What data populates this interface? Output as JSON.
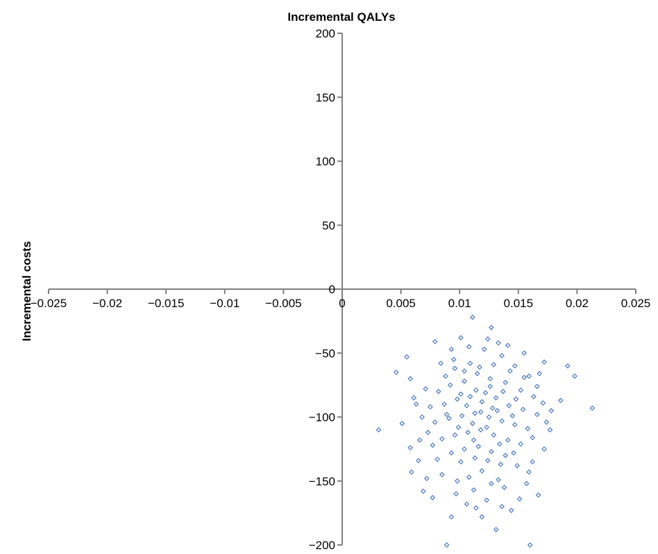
{
  "chart_data": {
    "type": "scatter",
    "title": "",
    "xlabel": "Incremental QALYs",
    "ylabel": "Incremental costs",
    "xlim": [
      -0.025,
      0.025
    ],
    "ylim": [
      -200,
      200
    ],
    "x_ticks": [
      -0.025,
      -0.02,
      -0.015,
      -0.01,
      -0.005,
      0,
      0.005,
      0.01,
      0.015,
      0.02,
      0.025
    ],
    "x_tick_labels": [
      "−0.025",
      "−0.02",
      "−0.015",
      "−0.01",
      "−0.005",
      "0",
      "0.005",
      "0.01",
      "0.015",
      "0.02",
      "0.025"
    ],
    "y_ticks": [
      200,
      150,
      100,
      50,
      0,
      -50,
      -100,
      -150,
      -200
    ],
    "y_tick_labels": [
      "200",
      "150",
      "100",
      "50",
      "0",
      "−50",
      "−100",
      "−150",
      "−200"
    ],
    "grid": false,
    "legend": "none",
    "marker": "open-diamond",
    "marker_color": "#4a78bf",
    "axis_color": "#7f7f7f",
    "series": [
      {
        "points": [
          [
            0.0031,
            -110
          ],
          [
            0.0051,
            -105
          ],
          [
            0.0055,
            -53
          ],
          [
            0.0046,
            -65
          ],
          [
            0.0063,
            -90
          ],
          [
            0.0089,
            -200
          ],
          [
            0.0111,
            -22
          ],
          [
            0.0127,
            -30
          ],
          [
            0.016,
            -200
          ],
          [
            0.0213,
            -93
          ],
          [
            0.0198,
            -68
          ],
          [
            0.0192,
            -60
          ],
          [
            0.0186,
            -87
          ],
          [
            0.0178,
            -95
          ],
          [
            0.0172,
            -57
          ],
          [
            0.0131,
            -188
          ],
          [
            0.0144,
            -173
          ],
          [
            0.0119,
            -178
          ],
          [
            0.0093,
            -178
          ],
          [
            0.0077,
            -163
          ],
          [
            0.0069,
            -158
          ],
          [
            0.0072,
            -148
          ],
          [
            0.0167,
            -161
          ],
          [
            0.0159,
            -143
          ],
          [
            0.0151,
            -164
          ],
          [
            0.0172,
            -125
          ],
          [
            0.0177,
            -110
          ],
          [
            0.0066,
            -118
          ],
          [
            0.0058,
            -124
          ],
          [
            0.0079,
            -41
          ],
          [
            0.0101,
            -38
          ],
          [
            0.0124,
            -39
          ],
          [
            0.0141,
            -44
          ],
          [
            0.0155,
            -50
          ],
          [
            0.0168,
            -66
          ],
          [
            0.0106,
            -168
          ],
          [
            0.0112,
            -157
          ],
          [
            0.0085,
            -145
          ],
          [
            0.0098,
            -150
          ],
          [
            0.0138,
            -155
          ],
          [
            0.0149,
            -138
          ],
          [
            0.0133,
            -149
          ],
          [
            0.0095,
            -55
          ],
          [
            0.0109,
            -58
          ],
          [
            0.0121,
            -47
          ],
          [
            0.0136,
            -52
          ],
          [
            0.0147,
            -60
          ],
          [
            0.0159,
            -68
          ],
          [
            0.0088,
            -68
          ],
          [
            0.0082,
            -80
          ],
          [
            0.0092,
            -75
          ],
          [
            0.0104,
            -72
          ],
          [
            0.0115,
            -66
          ],
          [
            0.0126,
            -70
          ],
          [
            0.0139,
            -73
          ],
          [
            0.0152,
            -79
          ],
          [
            0.0163,
            -84
          ],
          [
            0.0075,
            -92
          ],
          [
            0.0087,
            -90
          ],
          [
            0.0098,
            -86
          ],
          [
            0.0109,
            -84
          ],
          [
            0.0119,
            -88
          ],
          [
            0.0131,
            -85
          ],
          [
            0.0142,
            -91
          ],
          [
            0.0154,
            -94
          ],
          [
            0.0166,
            -98
          ],
          [
            0.0079,
            -104
          ],
          [
            0.0091,
            -101
          ],
          [
            0.0102,
            -99
          ],
          [
            0.0113,
            -97
          ],
          [
            0.0125,
            -100
          ],
          [
            0.0136,
            -103
          ],
          [
            0.0147,
            -106
          ],
          [
            0.0158,
            -109
          ],
          [
            0.0085,
            -117
          ],
          [
            0.0096,
            -114
          ],
          [
            0.0107,
            -112
          ],
          [
            0.0118,
            -110
          ],
          [
            0.0129,
            -114
          ],
          [
            0.0141,
            -118
          ],
          [
            0.0152,
            -121
          ],
          [
            0.0093,
            -128
          ],
          [
            0.0104,
            -125
          ],
          [
            0.0116,
            -123
          ],
          [
            0.0127,
            -127
          ],
          [
            0.0139,
            -130
          ],
          [
            0.0101,
            -135
          ],
          [
            0.0113,
            -132
          ],
          [
            0.0124,
            -134
          ],
          [
            0.0135,
            -137
          ],
          [
            0.0117,
            -61
          ],
          [
            0.0129,
            -59
          ],
          [
            0.0096,
            -62
          ],
          [
            0.0143,
            -64
          ],
          [
            0.0084,
            -58
          ],
          [
            0.0071,
            -78
          ],
          [
            0.0068,
            -100
          ],
          [
            0.0073,
            -112
          ],
          [
            0.0166,
            -76
          ],
          [
            0.0171,
            -89
          ],
          [
            0.0174,
            -104
          ],
          [
            0.0162,
            -116
          ],
          [
            0.0108,
            -45
          ],
          [
            0.0133,
            -42
          ],
          [
            0.0093,
            -47
          ],
          [
            0.0119,
            -142
          ],
          [
            0.0108,
            -147
          ],
          [
            0.0127,
            -152
          ],
          [
            0.0146,
            -128
          ],
          [
            0.0081,
            -133
          ],
          [
            0.0077,
            -122
          ],
          [
            0.0114,
            -79
          ],
          [
            0.0122,
            -81
          ],
          [
            0.0106,
            -91
          ],
          [
            0.0128,
            -93
          ],
          [
            0.0111,
            -105
          ],
          [
            0.0132,
            -95
          ],
          [
            0.0101,
            -82
          ],
          [
            0.0137,
            -80
          ],
          [
            0.0145,
            -99
          ],
          [
            0.0118,
            -96
          ],
          [
            0.0123,
            -108
          ],
          [
            0.0099,
            -108
          ],
          [
            0.0148,
            -86
          ],
          [
            0.0089,
            -98
          ],
          [
            0.0112,
            -118
          ],
          [
            0.0134,
            -121
          ],
          [
            0.0104,
            -64
          ],
          [
            0.0126,
            -76
          ],
          [
            0.0155,
            -69
          ],
          [
            0.0061,
            -85
          ],
          [
            0.0058,
            -70
          ],
          [
            0.0065,
            -134
          ],
          [
            0.0059,
            -143
          ],
          [
            0.0162,
            -135
          ],
          [
            0.0157,
            -152
          ],
          [
            0.0097,
            -160
          ],
          [
            0.0123,
            -165
          ],
          [
            0.0136,
            -170
          ],
          [
            0.0114,
            -171
          ]
        ]
      }
    ]
  }
}
